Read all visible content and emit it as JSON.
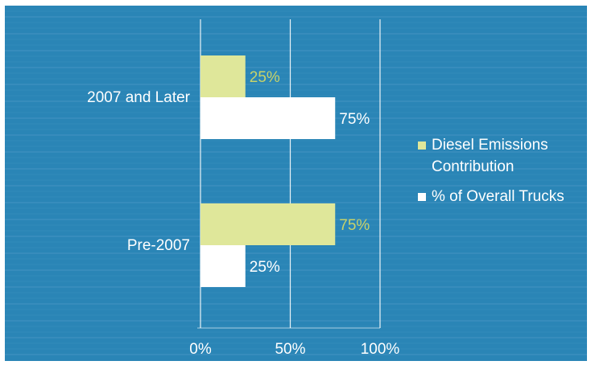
{
  "chart_data": {
    "type": "bar",
    "orientation": "horizontal",
    "categories": [
      "2007 and Later",
      "Pre-2007"
    ],
    "series": [
      {
        "name": "Diesel Emissions Contribution",
        "values": [
          25,
          75
        ],
        "labels": [
          "25%",
          "75%"
        ],
        "color": "#dfe79a",
        "label_color": "#c8d36a"
      },
      {
        "name": "% of Overall Trucks",
        "values": [
          75,
          25
        ],
        "labels": [
          "75%",
          "25%"
        ],
        "color": "#ffffff",
        "label_color": "#ffffff"
      }
    ],
    "xlim": [
      0,
      100
    ],
    "x_ticks": [
      0,
      50,
      100
    ],
    "x_tick_labels": [
      "0%",
      "50%",
      "100%"
    ],
    "grid": true,
    "legend_position": "right",
    "legend_lines": [
      [
        "Diesel Emissions",
        "Contribution"
      ],
      [
        "% of Overall Trucks"
      ]
    ],
    "title": "",
    "xlabel": "",
    "ylabel": ""
  },
  "colors": {
    "background": "#2a85b6",
    "border": "#ffffff",
    "gridline": "#ffffff"
  }
}
